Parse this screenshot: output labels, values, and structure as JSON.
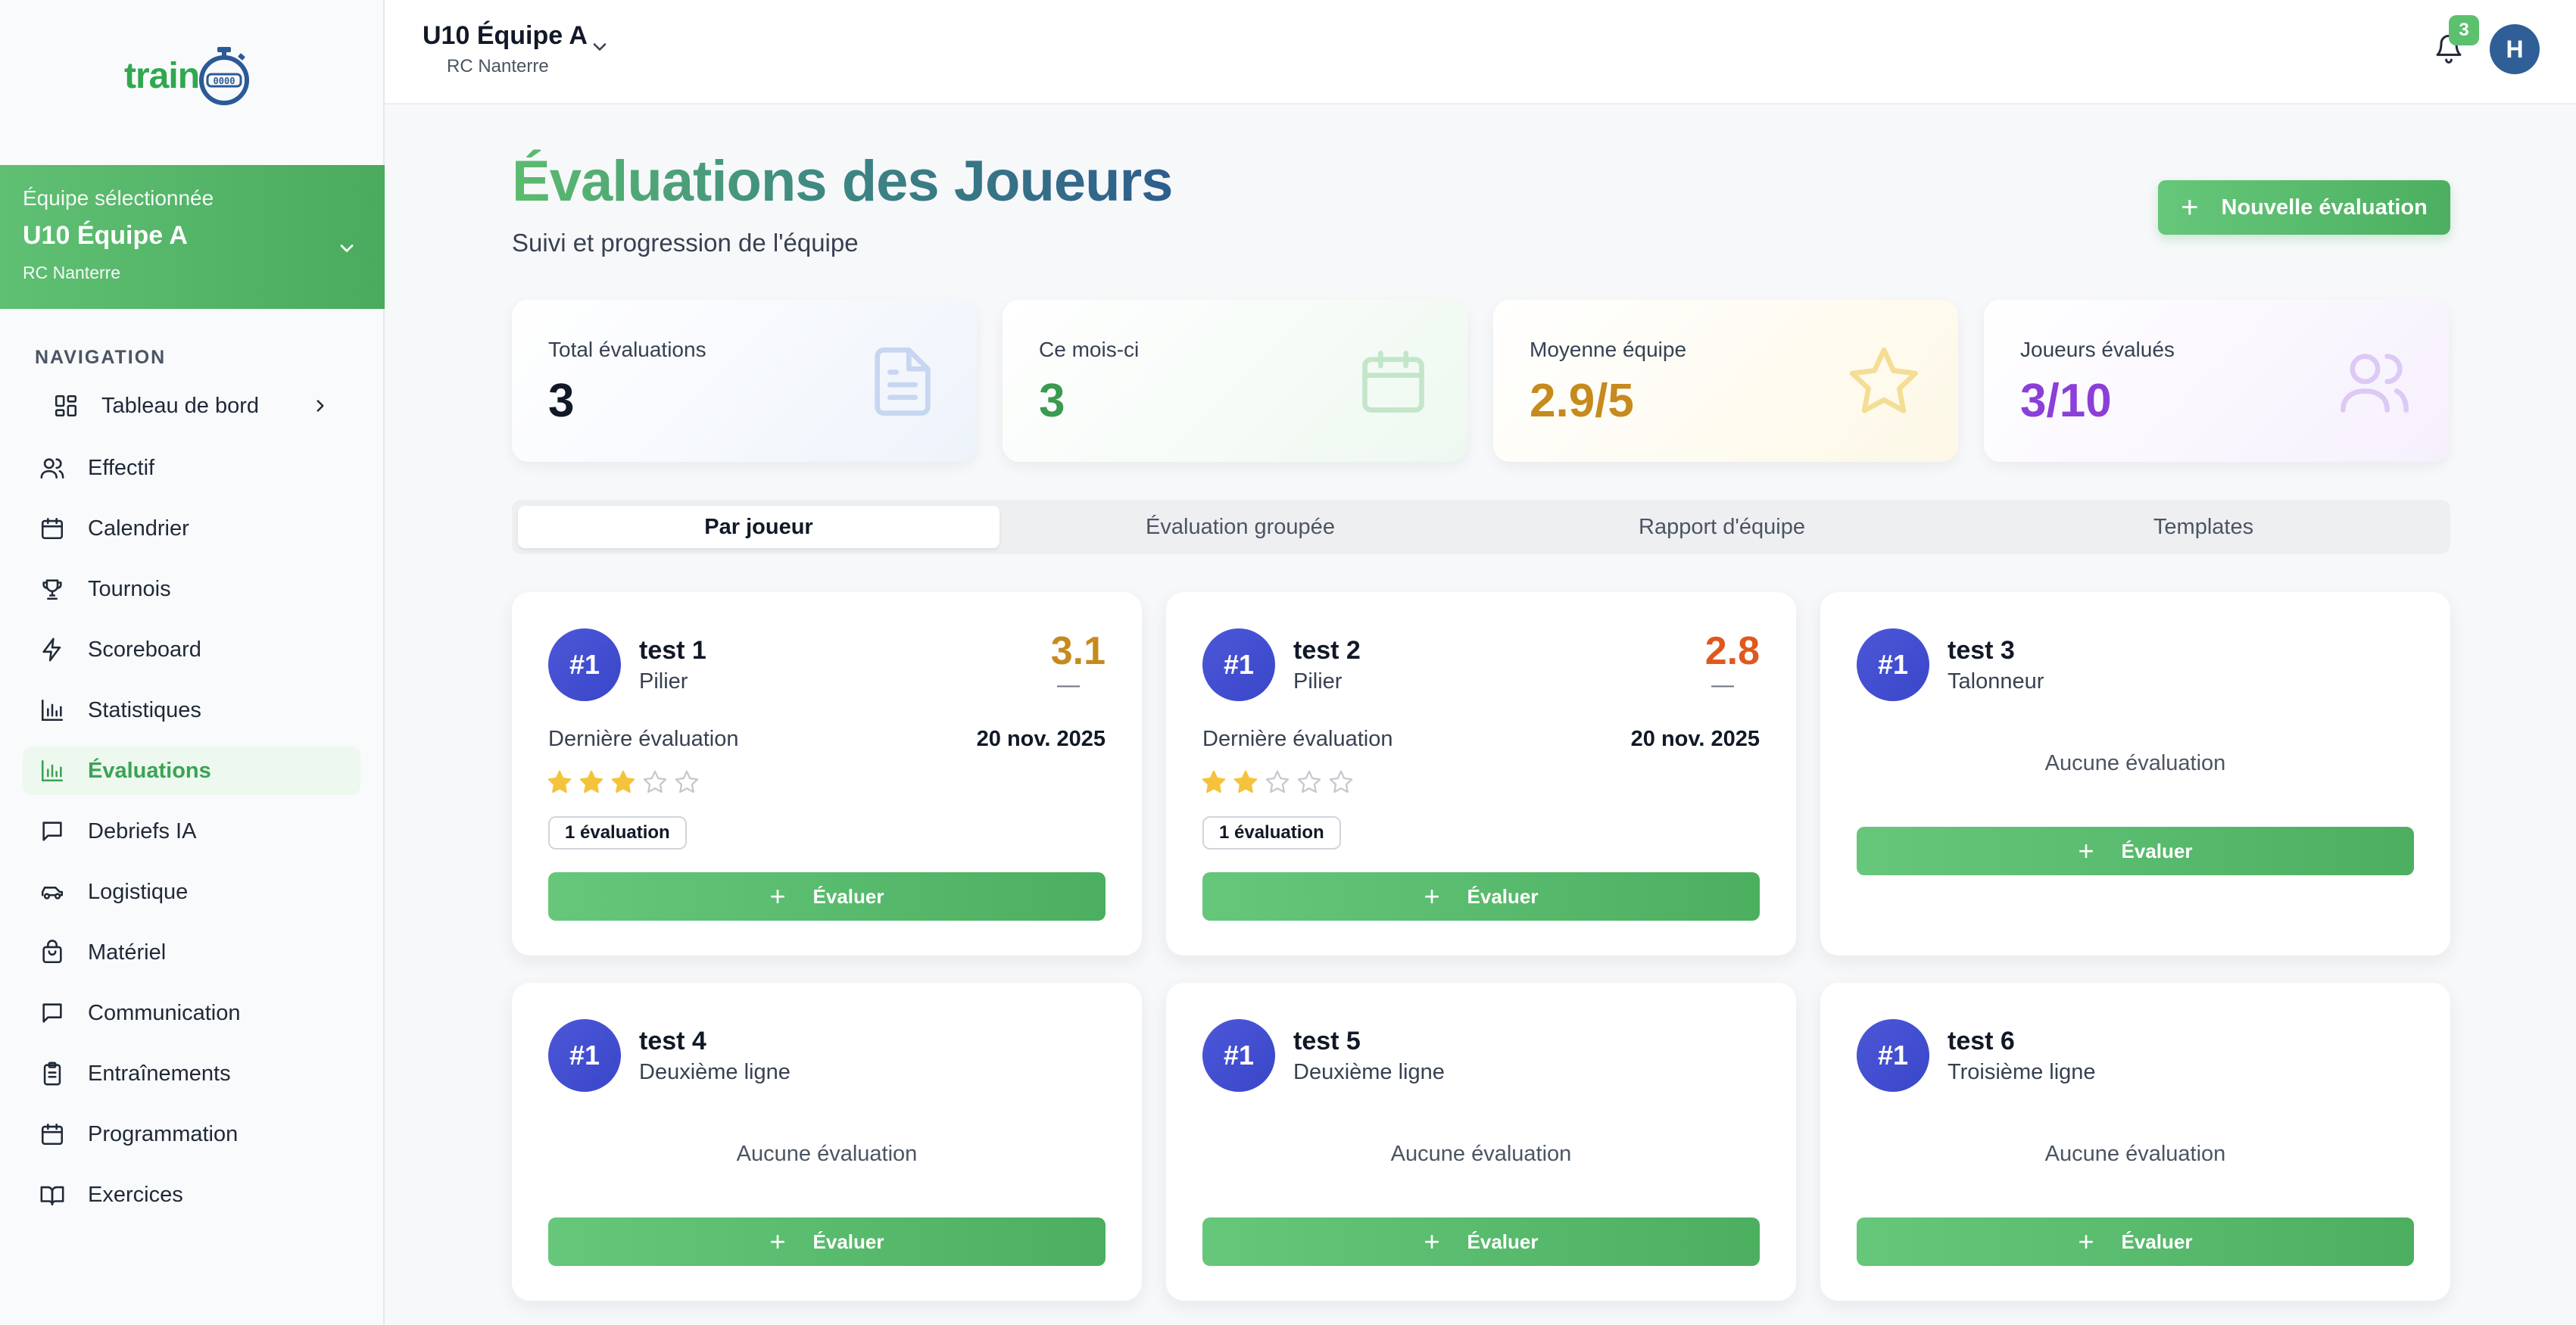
{
  "app": {
    "logo_text": "train",
    "logo_dial": "0000"
  },
  "sidebar": {
    "team_label": "Équipe sélectionnée",
    "team_name": "U10 Équipe A",
    "team_club": "RC Nanterre",
    "nav_title": "NAVIGATION",
    "items": [
      {
        "label": "Tableau de bord",
        "icon": "grid-icon"
      },
      {
        "label": "Effectif",
        "icon": "users-icon"
      },
      {
        "label": "Calendrier",
        "icon": "calendar-icon"
      },
      {
        "label": "Tournois",
        "icon": "trophy-icon"
      },
      {
        "label": "Scoreboard",
        "icon": "lightning-icon"
      },
      {
        "label": "Statistiques",
        "icon": "bar-chart-icon"
      },
      {
        "label": "Évaluations",
        "icon": "bar-chart-icon",
        "active": true
      },
      {
        "label": "Debriefs IA",
        "icon": "message-icon"
      },
      {
        "label": "Logistique",
        "icon": "car-icon"
      },
      {
        "label": "Matériel",
        "icon": "bag-icon"
      },
      {
        "label": "Communication",
        "icon": "message-icon"
      },
      {
        "label": "Entraînements",
        "icon": "clipboard-icon"
      },
      {
        "label": "Programmation",
        "icon": "calendar-icon"
      },
      {
        "label": "Exercices",
        "icon": "book-icon"
      }
    ]
  },
  "topbar": {
    "team_name": "U10 Équipe A",
    "club": "RC Nanterre",
    "notifications": "3",
    "avatar_initial": "H"
  },
  "header": {
    "title": "Évaluations des Joueurs",
    "subtitle": "Suivi et progression de l'équipe",
    "new_button": "Nouvelle évaluation"
  },
  "stats": [
    {
      "label": "Total évaluations",
      "value": "3",
      "color": "#111827",
      "icon": "document-icon"
    },
    {
      "label": "Ce mois-ci",
      "value": "3",
      "color": "#3a9a50",
      "icon": "calendar-icon"
    },
    {
      "label": "Moyenne équipe",
      "value": "2.9/5",
      "color": "#c68a1d",
      "icon": "star-icon"
    },
    {
      "label": "Joueurs évalués",
      "value": "3/10",
      "color": "#8b3fd8",
      "icon": "users-icon"
    }
  ],
  "tabs": [
    "Par joueur",
    "Évaluation groupée",
    "Rapport d'équipe",
    "Templates"
  ],
  "players": [
    {
      "rank": "#1",
      "name": "test 1",
      "position": "Pilier",
      "score": "3.1",
      "score_color": "#c68a1d",
      "trend": "—",
      "last_label": "Dernière évaluation",
      "last_date": "20 nov. 2025",
      "stars": 3,
      "count": "1 évaluation",
      "button": "Évaluer"
    },
    {
      "rank": "#1",
      "name": "test 2",
      "position": "Pilier",
      "score": "2.8",
      "score_color": "#e0581f",
      "trend": "—",
      "last_label": "Dernière évaluation",
      "last_date": "20 nov. 2025",
      "stars": 2,
      "count": "1 évaluation",
      "button": "Évaluer"
    },
    {
      "rank": "#1",
      "name": "test 3",
      "position": "Talonneur",
      "empty": "Aucune évaluation",
      "button": "Évaluer"
    },
    {
      "rank": "#1",
      "name": "test 4",
      "position": "Deuxième ligne",
      "empty": "Aucune évaluation",
      "button": "Évaluer"
    },
    {
      "rank": "#1",
      "name": "test 5",
      "position": "Deuxième ligne",
      "empty": "Aucune évaluation",
      "button": "Évaluer"
    },
    {
      "rank": "#1",
      "name": "test 6",
      "position": "Troisième ligne",
      "empty": "Aucune évaluation",
      "button": "Évaluer"
    }
  ]
}
